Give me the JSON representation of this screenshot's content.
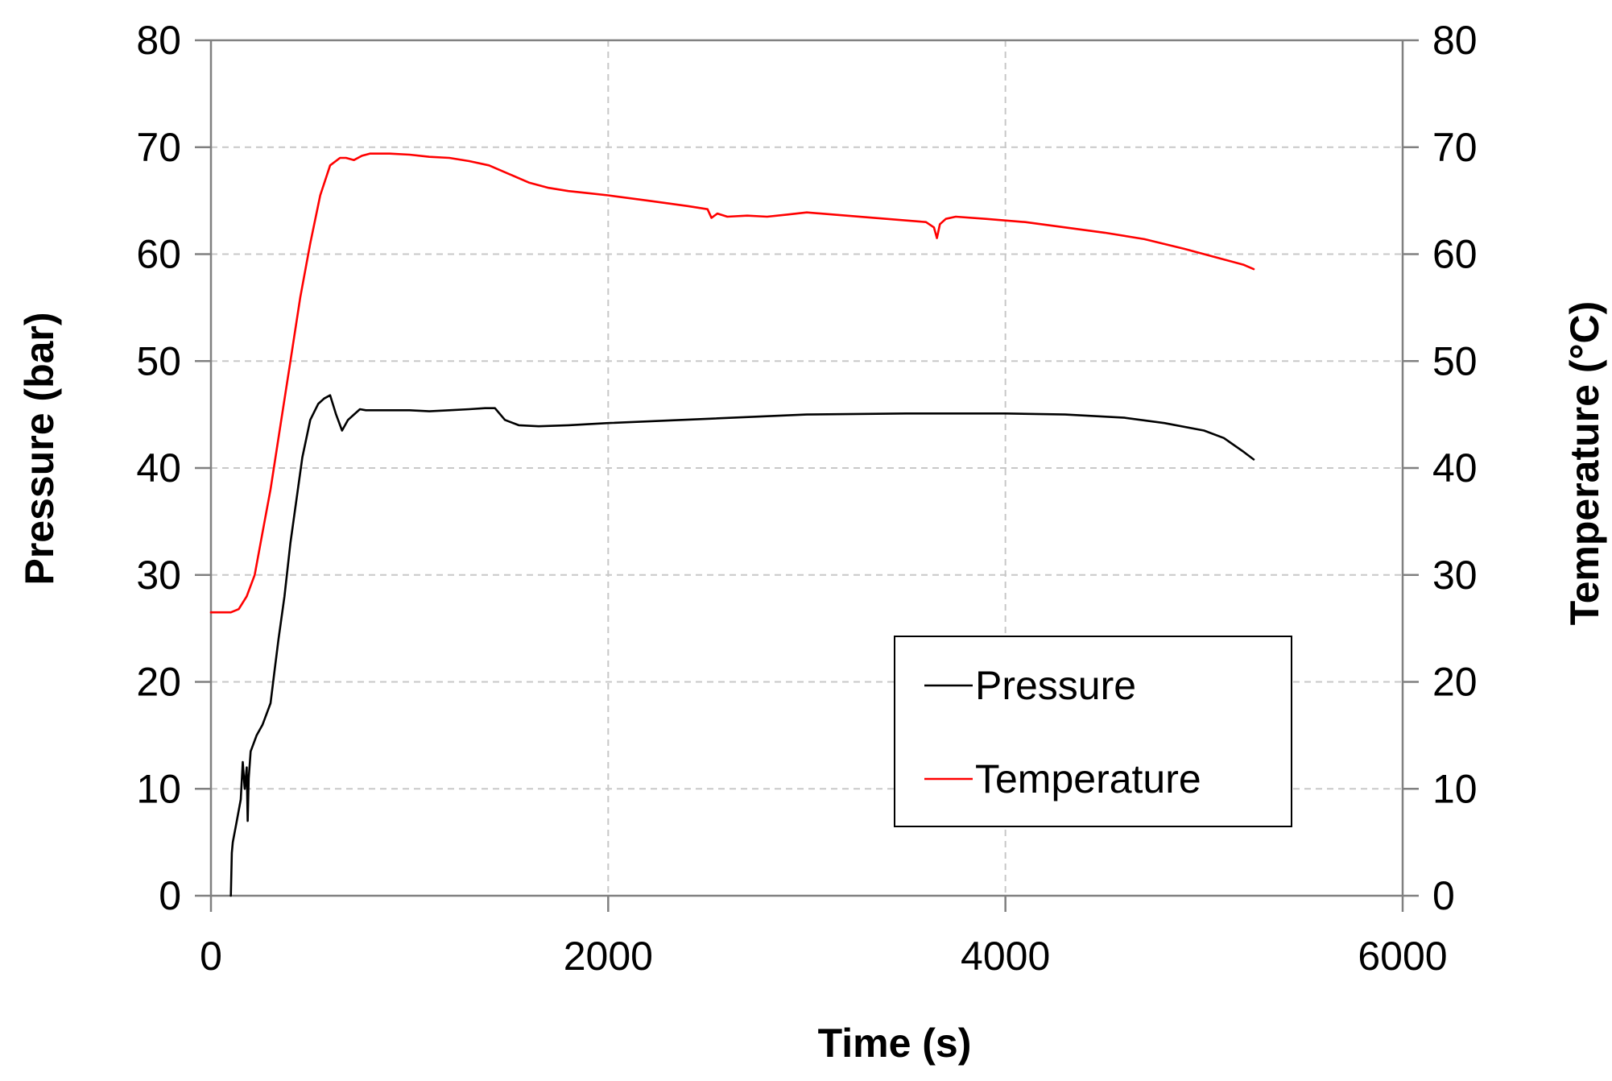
{
  "chart_data": {
    "type": "line",
    "title": "",
    "xlabel": "Time (s)",
    "ylabel": "Pressure (bar)",
    "y2label": "Temperature (°C)",
    "xlim": [
      0,
      6000
    ],
    "ylim": [
      0,
      80
    ],
    "y2lim": [
      0,
      80
    ],
    "xticks": [
      "0",
      "2000",
      "4000",
      "6000"
    ],
    "yticks": [
      "0",
      "10",
      "20",
      "30",
      "40",
      "50",
      "60",
      "70",
      "80"
    ],
    "y2ticks": [
      "0",
      "10",
      "20",
      "30",
      "40",
      "50",
      "60",
      "70",
      "80"
    ],
    "grid": true,
    "legend_position": "lower-right",
    "series": [
      {
        "name": "Pressure",
        "axis": "left",
        "color": "#000000",
        "x": [
          100,
          105,
          110,
          130,
          150,
          160,
          170,
          180,
          185,
          190,
          200,
          230,
          260,
          300,
          320,
          340,
          370,
          400,
          430,
          460,
          500,
          540,
          570,
          600,
          630,
          660,
          690,
          720,
          750,
          780,
          820,
          900,
          1000,
          1100,
          1200,
          1300,
          1380,
          1430,
          1480,
          1550,
          1650,
          1800,
          2000,
          2500,
          3000,
          3500,
          4000,
          4300,
          4600,
          4800,
          5000,
          5100,
          5200,
          5250
        ],
        "values": [
          0,
          4,
          5,
          7,
          9,
          12.5,
          10,
          12,
          7,
          11,
          13.5,
          15,
          16,
          18,
          21,
          24,
          28,
          33,
          37,
          41,
          44.5,
          46,
          46.5,
          46.8,
          45,
          43.5,
          44.5,
          45,
          45.5,
          45.4,
          45.4,
          45.4,
          45.4,
          45.3,
          45.4,
          45.5,
          45.6,
          45.6,
          44.5,
          44,
          43.9,
          44,
          44.2,
          44.6,
          45,
          45.1,
          45.1,
          45,
          44.7,
          44.2,
          43.5,
          42.8,
          41.5,
          40.8
        ]
      },
      {
        "name": "Temperature",
        "axis": "right",
        "color": "#ff0000",
        "x": [
          0,
          100,
          140,
          180,
          220,
          260,
          300,
          350,
          400,
          450,
          500,
          550,
          600,
          650,
          680,
          720,
          760,
          800,
          850,
          900,
          1000,
          1100,
          1200,
          1300,
          1400,
          1500,
          1600,
          1700,
          1800,
          1900,
          2000,
          2200,
          2400,
          2500,
          2520,
          2550,
          2600,
          2700,
          2800,
          2900,
          3000,
          3200,
          3400,
          3600,
          3640,
          3655,
          3670,
          3700,
          3750,
          3900,
          4100,
          4300,
          4500,
          4700,
          4900,
          5100,
          5200,
          5250
        ],
        "values": [
          26.5,
          26.5,
          26.8,
          28,
          30,
          34,
          38,
          44,
          50,
          56,
          61,
          65.5,
          68.3,
          69,
          69,
          68.8,
          69.2,
          69.4,
          69.4,
          69.4,
          69.3,
          69.1,
          69,
          68.7,
          68.3,
          67.5,
          66.7,
          66.2,
          65.9,
          65.7,
          65.5,
          65,
          64.5,
          64.2,
          63.4,
          63.8,
          63.5,
          63.6,
          63.5,
          63.7,
          63.9,
          63.6,
          63.3,
          63,
          62.5,
          61.5,
          62.8,
          63.3,
          63.5,
          63.3,
          63,
          62.5,
          62,
          61.4,
          60.5,
          59.5,
          59,
          58.6
        ]
      }
    ]
  }
}
